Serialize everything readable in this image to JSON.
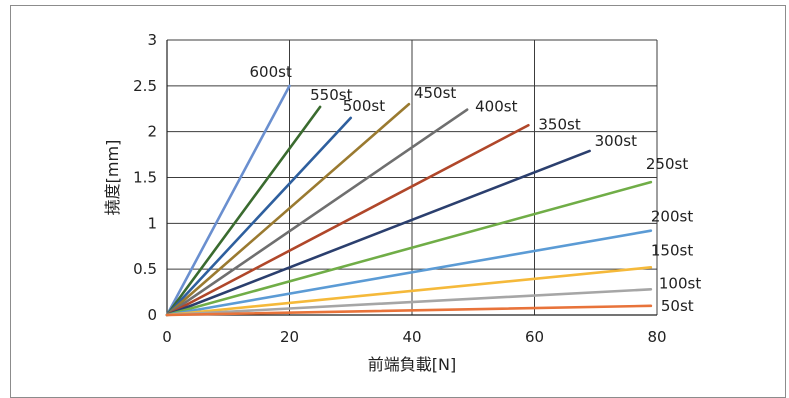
{
  "chart_data": {
    "type": "line",
    "title": "",
    "xlabel": "前端負載[N]",
    "ylabel": "撓度[mm]",
    "xlim": [
      0,
      80
    ],
    "ylim": [
      0,
      3
    ],
    "x_ticks": [
      "0",
      "20",
      "40",
      "60",
      "80"
    ],
    "y_ticks": [
      "0",
      "0.5",
      "1",
      "1.5",
      "2",
      "2.5",
      "3"
    ],
    "grid": true,
    "series": [
      {
        "name": "600st",
        "color": "#6a8fcf",
        "x": [
          0,
          20
        ],
        "y": [
          0,
          2.5
        ]
      },
      {
        "name": "550st",
        "color": "#3a6b2f",
        "x": [
          0,
          25
        ],
        "y": [
          0,
          2.27
        ]
      },
      {
        "name": "500st",
        "color": "#2e5f9e",
        "x": [
          0,
          30
        ],
        "y": [
          0,
          2.15
        ]
      },
      {
        "name": "450st",
        "color": "#9a7a30",
        "x": [
          0,
          39.5
        ],
        "y": [
          0,
          2.3
        ]
      },
      {
        "name": "400st",
        "color": "#6f6f6f",
        "x": [
          0,
          49
        ],
        "y": [
          0,
          2.24
        ]
      },
      {
        "name": "350st",
        "color": "#b0472a",
        "x": [
          0,
          59
        ],
        "y": [
          0,
          2.07
        ]
      },
      {
        "name": "300st",
        "color": "#2b3f6e",
        "x": [
          0,
          69
        ],
        "y": [
          0,
          1.79
        ]
      },
      {
        "name": "250st",
        "color": "#70ad47",
        "x": [
          0,
          79
        ],
        "y": [
          0,
          1.45
        ]
      },
      {
        "name": "200st",
        "color": "#5b9bd5",
        "x": [
          0,
          79
        ],
        "y": [
          0,
          0.92
        ]
      },
      {
        "name": "150st",
        "color": "#f5b93a",
        "x": [
          0,
          79
        ],
        "y": [
          0,
          0.52
        ]
      },
      {
        "name": "100st",
        "color": "#a6a6a6",
        "x": [
          0,
          79
        ],
        "y": [
          0,
          0.28
        ]
      },
      {
        "name": "50st",
        "color": "#e8733a",
        "x": [
          0,
          79
        ],
        "y": [
          0,
          0.1
        ]
      }
    ]
  }
}
